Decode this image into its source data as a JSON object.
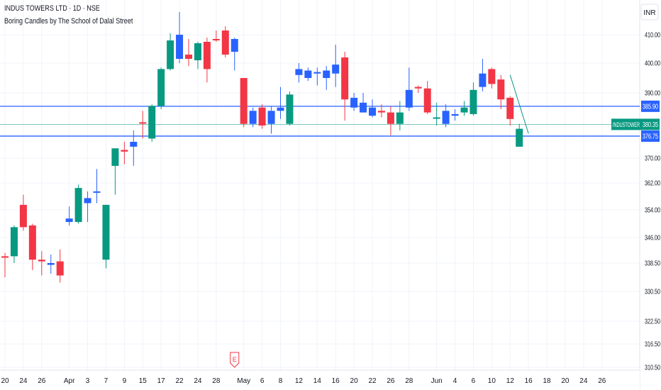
{
  "header": {
    "title": "INDUS TOWERS LTD · 1D · NSE",
    "indicator": "Boring Candles by The School of Dalal Street"
  },
  "currency": "INR",
  "colors": {
    "up": "#089981",
    "down": "#f23645",
    "boring": "#2962ff",
    "level_line": "#2962ff",
    "price_line": "#089981",
    "grid": "#f0f3fa",
    "axis_text": "#131722"
  },
  "chart_data": {
    "type": "candlestick",
    "ylim": [
      310.5,
      418
    ],
    "y_ticks": [
      {
        "value": 410,
        "label": "410.00"
      },
      {
        "value": 400,
        "label": "400.00"
      },
      {
        "value": 390,
        "label": "390.00"
      },
      {
        "value": 370,
        "label": "370.00"
      },
      {
        "value": 362,
        "label": "362.00"
      },
      {
        "value": 354,
        "label": "354.00"
      },
      {
        "value": 346,
        "label": "346.00"
      },
      {
        "value": 338.5,
        "label": "338.50"
      },
      {
        "value": 330.5,
        "label": "330.50"
      },
      {
        "value": 322.5,
        "label": "322.50"
      },
      {
        "value": 316.5,
        "label": "316.50"
      },
      {
        "value": 310.5,
        "label": "310.50"
      }
    ],
    "x_labels": [
      {
        "index": 0,
        "label": "20"
      },
      {
        "index": 2,
        "label": "24"
      },
      {
        "index": 4,
        "label": "26"
      },
      {
        "index": 7,
        "label": "Apr"
      },
      {
        "index": 9,
        "label": "3"
      },
      {
        "index": 11,
        "label": "7"
      },
      {
        "index": 13,
        "label": "9"
      },
      {
        "index": 15,
        "label": "15"
      },
      {
        "index": 17,
        "label": "17"
      },
      {
        "index": 19,
        "label": "22"
      },
      {
        "index": 21,
        "label": "24"
      },
      {
        "index": 23,
        "label": "28"
      },
      {
        "index": 26,
        "label": "May"
      },
      {
        "index": 28,
        "label": "6"
      },
      {
        "index": 30,
        "label": "8"
      },
      {
        "index": 32,
        "label": "12"
      },
      {
        "index": 34,
        "label": "14"
      },
      {
        "index": 36,
        "label": "16"
      },
      {
        "index": 38,
        "label": "20"
      },
      {
        "index": 40,
        "label": "22"
      },
      {
        "index": 42,
        "label": "26"
      },
      {
        "index": 44,
        "label": "28"
      },
      {
        "index": 47,
        "label": "Jun"
      },
      {
        "index": 49,
        "label": "4"
      },
      {
        "index": 51,
        "label": "6"
      },
      {
        "index": 53,
        "label": "10"
      },
      {
        "index": 55,
        "label": "12"
      },
      {
        "index": 57,
        "label": "16"
      },
      {
        "index": 59,
        "label": "18"
      },
      {
        "index": 61,
        "label": "20"
      },
      {
        "index": 63,
        "label": "24"
      },
      {
        "index": 65,
        "label": "26"
      }
    ],
    "candles": [
      {
        "o": 340.5,
        "h": 341.5,
        "l": 334.5,
        "c": 340.5,
        "t": "down"
      },
      {
        "o": 340.5,
        "h": 349.5,
        "l": 338.5,
        "c": 349.0,
        "t": "up"
      },
      {
        "o": 355.5,
        "h": 358.5,
        "l": 348.0,
        "c": 349.0,
        "t": "down"
      },
      {
        "o": 349.5,
        "h": 350.0,
        "l": 336.5,
        "c": 339.5,
        "t": "down"
      },
      {
        "o": 339.5,
        "h": 342.0,
        "l": 335.0,
        "c": 339.0,
        "t": "down"
      },
      {
        "o": 338.5,
        "h": 341.0,
        "l": 335.5,
        "c": 338.0,
        "t": "boring"
      },
      {
        "o": 339.0,
        "h": 342.5,
        "l": 333.0,
        "c": 335.0,
        "t": "down"
      },
      {
        "o": 351.5,
        "h": 355.0,
        "l": 349.5,
        "c": 350.5,
        "t": "boring"
      },
      {
        "o": 350.5,
        "h": 361.5,
        "l": 350.0,
        "c": 360.5,
        "t": "up"
      },
      {
        "o": 356.0,
        "h": 359.5,
        "l": 350.5,
        "c": 357.5,
        "t": "boring"
      },
      {
        "o": 359.5,
        "h": 366.5,
        "l": 356.0,
        "c": 359.5,
        "t": "boring"
      },
      {
        "o": 355.5,
        "h": 355.5,
        "l": 337.0,
        "c": 339.5,
        "t": "up"
      },
      {
        "o": 367.5,
        "h": 373.0,
        "l": 358.5,
        "c": 373.0,
        "t": "up"
      },
      {
        "o": 372.5,
        "h": 375.0,
        "l": 368.0,
        "c": 372.0,
        "t": "down"
      },
      {
        "o": 373.5,
        "h": 378.5,
        "l": 367.5,
        "c": 375.0,
        "t": "boring"
      },
      {
        "o": 381.0,
        "h": 384.5,
        "l": 376.0,
        "c": 381.0,
        "t": "down"
      },
      {
        "o": 376.0,
        "h": 386.5,
        "l": 375.0,
        "c": 386.0,
        "t": "up"
      },
      {
        "o": 386.0,
        "h": 398.5,
        "l": 385.0,
        "c": 398.0,
        "t": "up"
      },
      {
        "o": 398.0,
        "h": 410.5,
        "l": 397.5,
        "c": 408.0,
        "t": "up"
      },
      {
        "o": 410.0,
        "h": 418.0,
        "l": 400.0,
        "c": 401.5,
        "t": "boring"
      },
      {
        "o": 403.0,
        "h": 408.5,
        "l": 399.0,
        "c": 401.5,
        "t": "down"
      },
      {
        "o": 401.0,
        "h": 407.5,
        "l": 398.0,
        "c": 407.0,
        "t": "up"
      },
      {
        "o": 407.5,
        "h": 409.0,
        "l": 393.5,
        "c": 398.0,
        "t": "down"
      },
      {
        "o": 408.5,
        "h": 411.5,
        "l": 407.5,
        "c": 408.0,
        "t": "down"
      },
      {
        "o": 411.5,
        "h": 413.0,
        "l": 402.0,
        "c": 403.0,
        "t": "down"
      },
      {
        "o": 404.0,
        "h": 409.0,
        "l": 397.5,
        "c": 408.5,
        "t": "boring"
      },
      {
        "o": 395.0,
        "h": 395.0,
        "l": 379.5,
        "c": 380.5,
        "t": "down"
      },
      {
        "o": 380.5,
        "h": 385.5,
        "l": 379.5,
        "c": 384.5,
        "t": "boring"
      },
      {
        "o": 385.5,
        "h": 386.5,
        "l": 379.0,
        "c": 380.0,
        "t": "down"
      },
      {
        "o": 384.5,
        "h": 386.0,
        "l": 377.5,
        "c": 380.5,
        "t": "boring"
      },
      {
        "o": 384.5,
        "h": 392.0,
        "l": 382.0,
        "c": 385.5,
        "t": "boring"
      },
      {
        "o": 380.5,
        "h": 390.5,
        "l": 380.0,
        "c": 389.5,
        "t": "up"
      },
      {
        "o": 398.0,
        "h": 400.0,
        "l": 393.5,
        "c": 396.0,
        "t": "boring"
      },
      {
        "o": 397.5,
        "h": 398.5,
        "l": 394.0,
        "c": 395.0,
        "t": "boring"
      },
      {
        "o": 397.0,
        "h": 398.5,
        "l": 392.5,
        "c": 396.5,
        "t": "boring"
      },
      {
        "o": 397.5,
        "h": 399.0,
        "l": 391.0,
        "c": 395.0,
        "t": "boring"
      },
      {
        "o": 399.5,
        "h": 406.5,
        "l": 392.0,
        "c": 396.5,
        "t": "boring"
      },
      {
        "o": 402.0,
        "h": 404.0,
        "l": 381.5,
        "c": 388.0,
        "t": "down"
      },
      {
        "o": 388.5,
        "h": 390.0,
        "l": 384.5,
        "c": 385.5,
        "t": "boring"
      },
      {
        "o": 387.0,
        "h": 390.0,
        "l": 384.0,
        "c": 384.0,
        "t": "boring"
      },
      {
        "o": 385.5,
        "h": 388.0,
        "l": 382.5,
        "c": 383.0,
        "t": "boring"
      },
      {
        "o": 384.5,
        "h": 386.5,
        "l": 382.5,
        "c": 384.0,
        "t": "down"
      },
      {
        "o": 384.0,
        "h": 386.0,
        "l": 377.0,
        "c": 380.5,
        "t": "down"
      },
      {
        "o": 384.0,
        "h": 387.5,
        "l": 378.5,
        "c": 380.5,
        "t": "up"
      },
      {
        "o": 385.5,
        "h": 398.5,
        "l": 384.5,
        "c": 391.0,
        "t": "boring"
      },
      {
        "o": 391.5,
        "h": 392.5,
        "l": 390.0,
        "c": 392.0,
        "t": "down"
      },
      {
        "o": 391.5,
        "h": 394.0,
        "l": 383.5,
        "c": 384.0,
        "t": "down"
      },
      {
        "o": 382.5,
        "h": 387.0,
        "l": 380.0,
        "c": 382.5,
        "t": "up"
      },
      {
        "o": 384.5,
        "h": 386.5,
        "l": 379.5,
        "c": 380.5,
        "t": "boring"
      },
      {
        "o": 383.5,
        "h": 385.0,
        "l": 381.5,
        "c": 383.0,
        "t": "boring"
      },
      {
        "o": 384.0,
        "h": 387.5,
        "l": 383.0,
        "c": 385.5,
        "t": "up"
      },
      {
        "o": 383.5,
        "h": 393.5,
        "l": 383.0,
        "c": 391.0,
        "t": "up"
      },
      {
        "o": 392.0,
        "h": 401.5,
        "l": 390.5,
        "c": 396.5,
        "t": "boring"
      },
      {
        "o": 398.0,
        "h": 398.5,
        "l": 391.5,
        "c": 393.0,
        "t": "down"
      },
      {
        "o": 394.5,
        "h": 396.0,
        "l": 385.0,
        "c": 388.0,
        "t": "down"
      },
      {
        "o": 388.5,
        "h": 389.0,
        "l": 380.0,
        "c": 382.0,
        "t": "down"
      },
      {
        "o": 379.0,
        "h": 380.5,
        "l": 374.0,
        "c": 373.5,
        "t": "up"
      }
    ],
    "levels": [
      {
        "value": 385.9,
        "label": "385.90"
      },
      {
        "value": 376.75,
        "label": "376.75"
      }
    ],
    "last_price": {
      "value": 380.35,
      "label": "380.35",
      "symbol": "INDUSTOWER"
    },
    "trendline": [
      [
        55,
        396.0
      ],
      [
        57,
        377.5
      ]
    ],
    "earnings_marker": {
      "index": 25,
      "label": "E"
    }
  }
}
